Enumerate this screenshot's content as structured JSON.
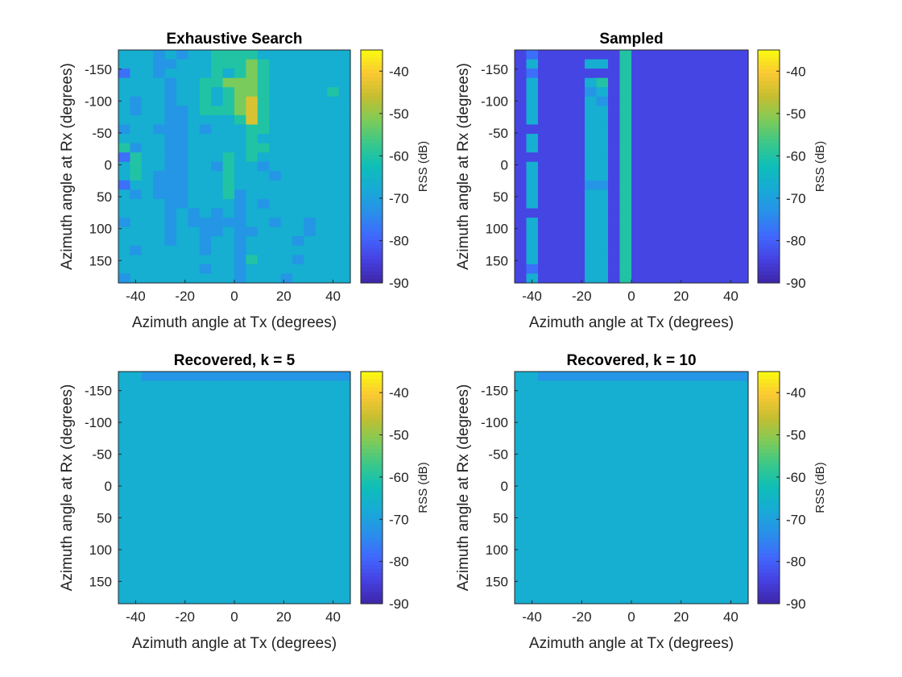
{
  "chart_data": {
    "type": "heatmap",
    "colormap": "parula",
    "shared": {
      "xlabel": "Azimuth angle at Tx (degrees)",
      "ylabel": "Azimuth angle at Rx (degrees)",
      "colorbar_label": "RSS (dB)",
      "xlim": [
        -47,
        47
      ],
      "ylim": [
        -180,
        185
      ],
      "y_reversed": true,
      "clim": [
        -90,
        -35
      ],
      "x_ticks": [
        -40,
        -20,
        0,
        20,
        40
      ],
      "y_ticks": [
        -150,
        -100,
        -50,
        0,
        50,
        100,
        150
      ],
      "colorbar_ticks": [
        -40,
        -50,
        -60,
        -70,
        -80,
        -90
      ],
      "grid_cols": 20,
      "grid_rows": 25
    },
    "panels": [
      {
        "title": "Exhaustive Search",
        "matrix_rows": [
          "5535555545635535554555554",
          "5555544555466654555554555",
          "5555555555555555555555555",
          "4445555545555444555555555",
          "5454444444444444444445555",
          "4555554444444444455555555",
          "5555555555555555544555555",
          "5556666545555555554444545",
          "6666556555554555544455555",
          "6657666555566666554555555",
          "6667777655555554444444444",
          "6777788866665555555455655",
          "5666666665654555455555555",
          "5555555555555455554555555",
          "5555555555555555555555554",
          "5555555555555555555545455",
          "5555555555555555554455555",
          "5555555555555555555555555",
          "5555655555555555555555555",
          "5555555555555555555555555"
        ],
        "transposed": true
      },
      {
        "title": "Sampled",
        "matrix_rows": [
          "2222222222222222222222222",
          "3535555525525555525555535",
          "2222222222222222222222222",
          "2222222222222222222222222",
          "2222222222222222222222222",
          "2222222222222222222222222",
          "2525455555555545555555555",
          "2526545555555545555555555",
          "2222222222222222222222222",
          "6666666666666666666666666",
          "2222222222222222222222222",
          "2222222222222222222222222",
          "2222222222222222222222222",
          "2222222222222222222222222",
          "2222222222222222222222222",
          "2222222222222222222222222",
          "2222222222222222222222222",
          "2222222222222222222222222",
          "2222222222222222222222222",
          "2222222222222222222222222"
        ],
        "transposed": true
      },
      {
        "title": "Recovered, k = 5",
        "matrix_rows": [
          "5555555555555555555555555",
          "5555555555555555555555555",
          "4555555555555555555555555",
          "4555555555555555555555555",
          "4555555555555555555555555",
          "4555555555555555555555555",
          "4555555555555555555555555",
          "4555555555555555555555555",
          "4555555555555555555555555",
          "4555555555555555555555555",
          "4555555555555555555555555",
          "4555555555555555555555555",
          "4555555555555555555555555",
          "4555555555555555555555555",
          "4555555555555555555555555",
          "4555555555555555555555555",
          "4555555555555555555555555",
          "4555555555555555555555555",
          "4555555555555555555555555",
          "4555555555555555555555555"
        ],
        "transposed": true
      },
      {
        "title": "Recovered, k = 10",
        "matrix_rows": [
          "5555555555555555555555555",
          "5555555555555555555555555",
          "4555555555555555555555555",
          "4555555555555555555555555",
          "4555555555555555555555555",
          "4555555555555555555555555",
          "4555555555555555555555555",
          "4555555555555555555555555",
          "4555555555555555555555555",
          "4555555555555555555555555",
          "4555555555555555555555555",
          "4555555555555555555555555",
          "4555555555555555555555555",
          "4555555555555555555555555",
          "4555555555555555555555555",
          "4555555555555555555555555",
          "4555555555555555555555555",
          "4555555555555555555555555",
          "4555555555555555555555555",
          "4555555555555555555555555"
        ],
        "transposed": true
      }
    ],
    "level_to_db": {
      "1": -88,
      "2": -84,
      "3": -78,
      "4": -72,
      "5": -67,
      "6": -60,
      "7": -52,
      "8": -44,
      "9": -38
    }
  }
}
